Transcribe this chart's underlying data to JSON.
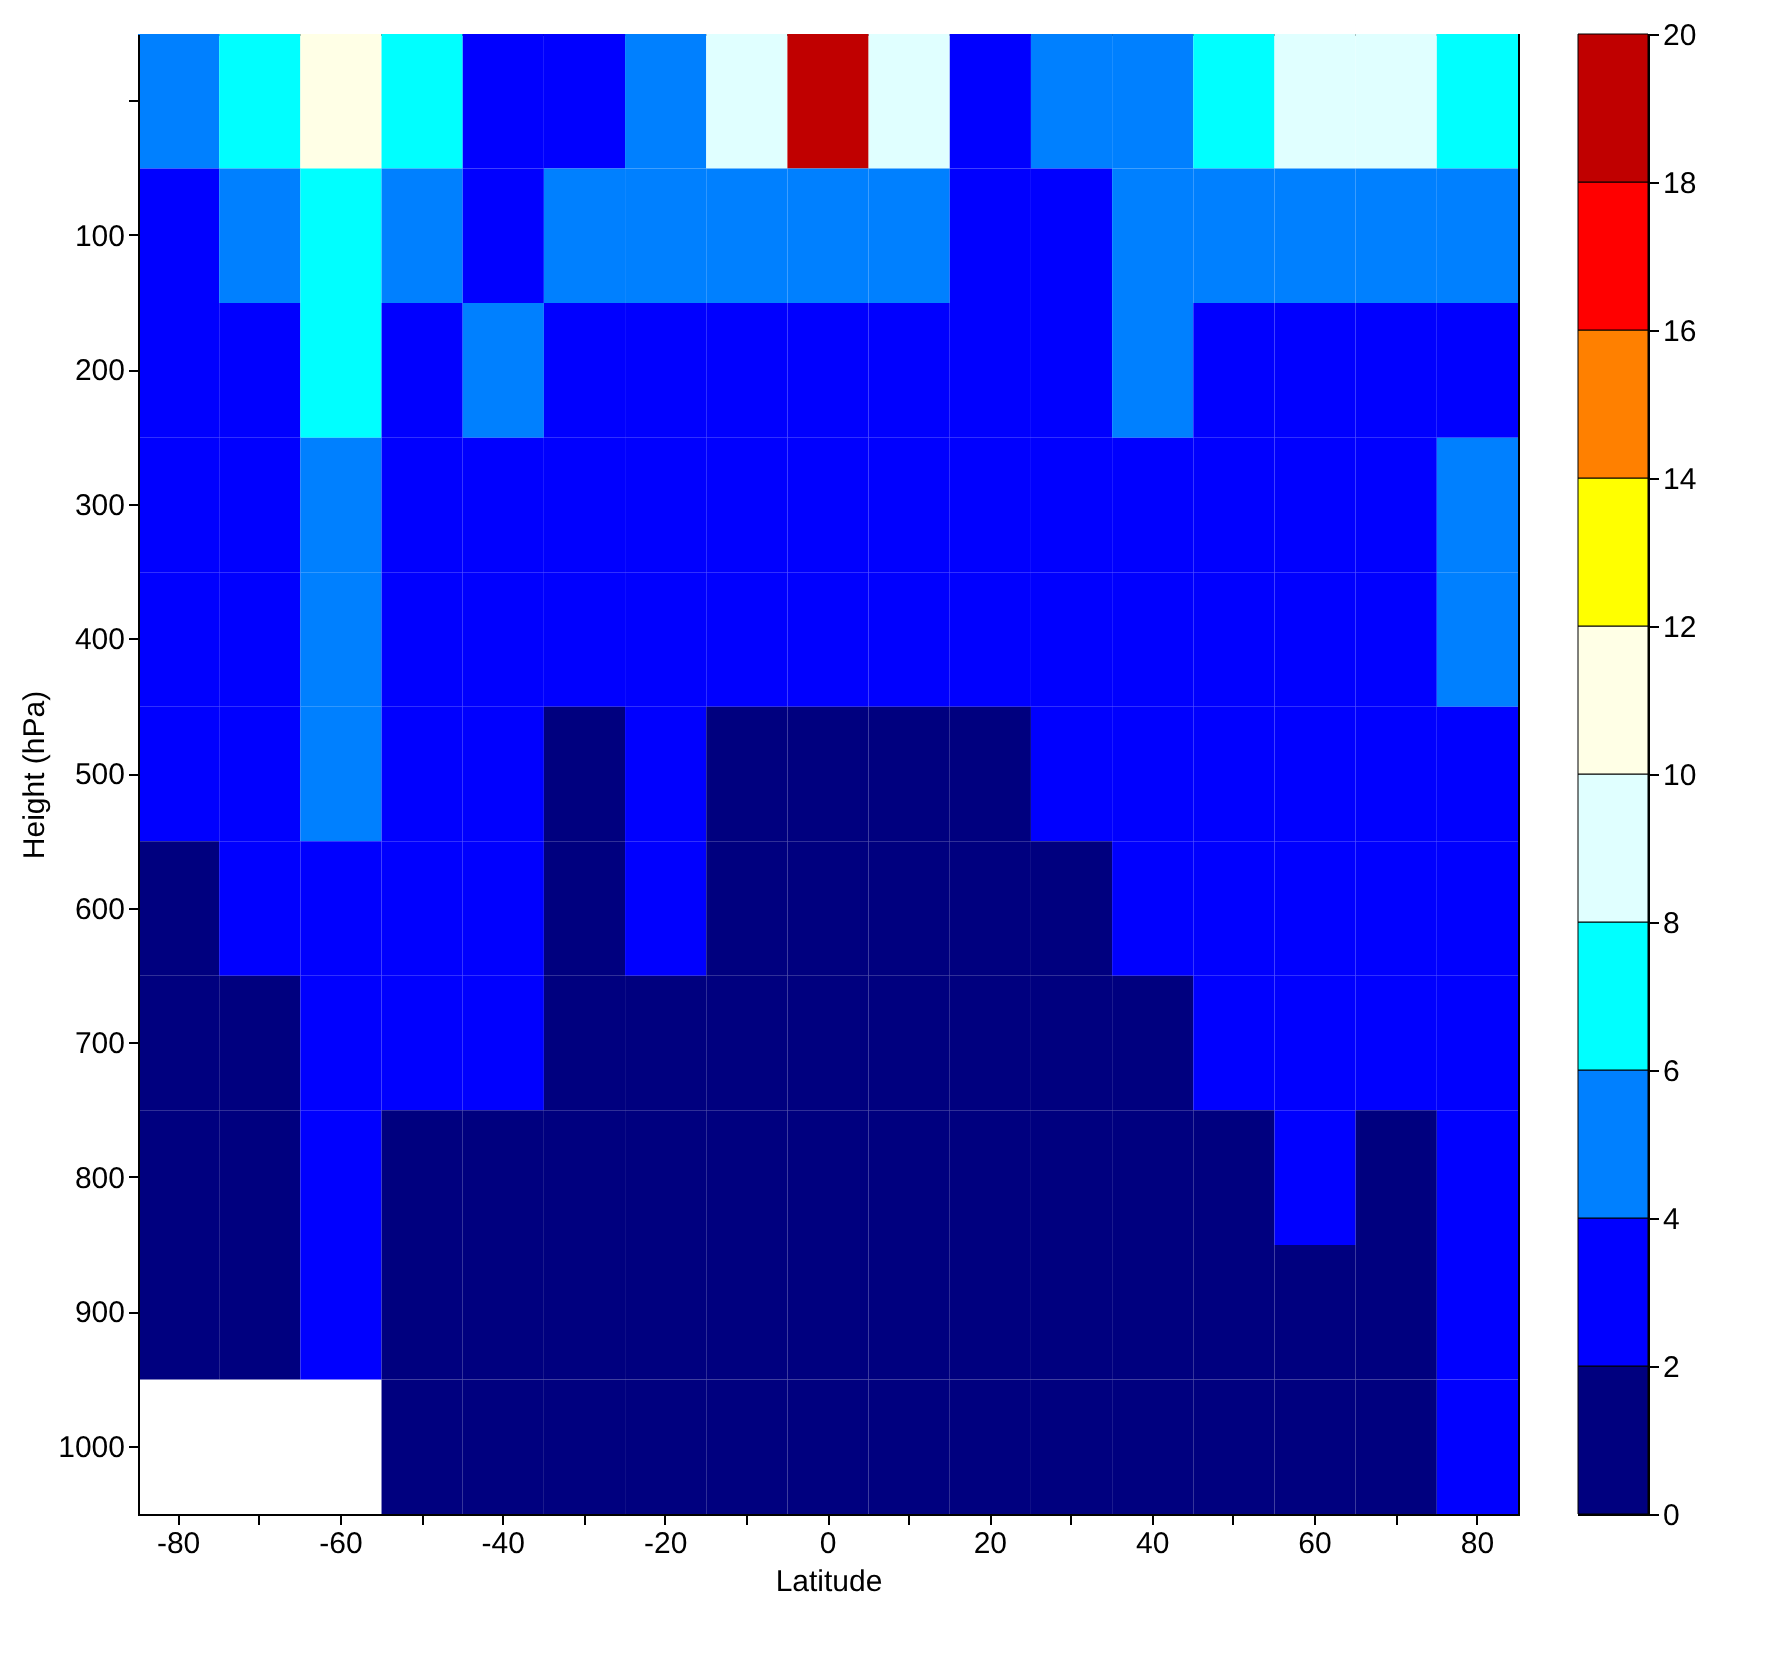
{
  "chart_data": {
    "type": "heatmap",
    "xlabel": "Latitude",
    "ylabel": "Height (hPa)",
    "categories": [
      "-80",
      null,
      "-60",
      null,
      "-40",
      null,
      "-20",
      null,
      "0",
      null,
      "20",
      null,
      "40",
      null,
      "60",
      null,
      "80"
    ],
    "y_categories": [
      null,
      "100",
      "200",
      "300",
      "400",
      "500",
      "600",
      "700",
      "800",
      "900",
      "1000"
    ],
    "cells": [
      [
        5,
        7,
        11,
        7,
        3,
        3,
        5,
        9,
        19,
        9,
        3,
        5,
        5,
        7,
        9,
        9,
        7
      ],
      [
        3,
        5,
        7,
        5,
        3,
        5,
        5,
        5,
        5,
        5,
        3,
        3,
        5,
        5,
        5,
        5,
        5
      ],
      [
        3,
        3,
        7,
        3,
        5,
        3,
        3,
        3,
        3,
        3,
        3,
        3,
        5,
        3,
        3,
        3,
        3
      ],
      [
        3,
        3,
        5,
        3,
        3,
        3,
        3,
        3,
        3,
        3,
        3,
        3,
        3,
        3,
        3,
        3,
        5
      ],
      [
        3,
        3,
        5,
        3,
        3,
        3,
        3,
        3,
        3,
        3,
        3,
        3,
        3,
        3,
        3,
        3,
        5
      ],
      [
        3,
        3,
        5,
        3,
        3,
        1,
        3,
        1,
        1,
        1,
        1,
        3,
        3,
        3,
        3,
        3,
        3
      ],
      [
        1,
        3,
        3,
        3,
        3,
        1,
        3,
        1,
        1,
        1,
        1,
        1,
        3,
        3,
        3,
        3,
        3
      ],
      [
        1,
        1,
        3,
        3,
        3,
        1,
        1,
        1,
        1,
        1,
        1,
        1,
        1,
        3,
        3,
        3,
        3
      ],
      [
        1,
        1,
        3,
        1,
        1,
        1,
        1,
        1,
        1,
        1,
        1,
        1,
        1,
        1,
        3,
        1,
        3
      ],
      [
        1,
        1,
        3,
        1,
        1,
        1,
        1,
        1,
        1,
        1,
        1,
        1,
        1,
        1,
        1,
        1,
        3
      ],
      [
        null,
        null,
        null,
        1,
        1,
        1,
        1,
        1,
        1,
        1,
        1,
        1,
        1,
        1,
        1,
        1,
        3
      ]
    ],
    "colors": [
      "#00007f",
      "#0000ff",
      "#0080ff",
      "#00ffff",
      "#e0ffff",
      "#ffffe6",
      "#ffff00",
      "#ff8000",
      "#ff0000",
      "#c00000"
    ],
    "clim": [
      0,
      20
    ],
    "cticks": [
      0,
      2,
      4,
      6,
      8,
      10,
      12,
      14,
      16,
      18,
      20
    ],
    "grid": false
  }
}
